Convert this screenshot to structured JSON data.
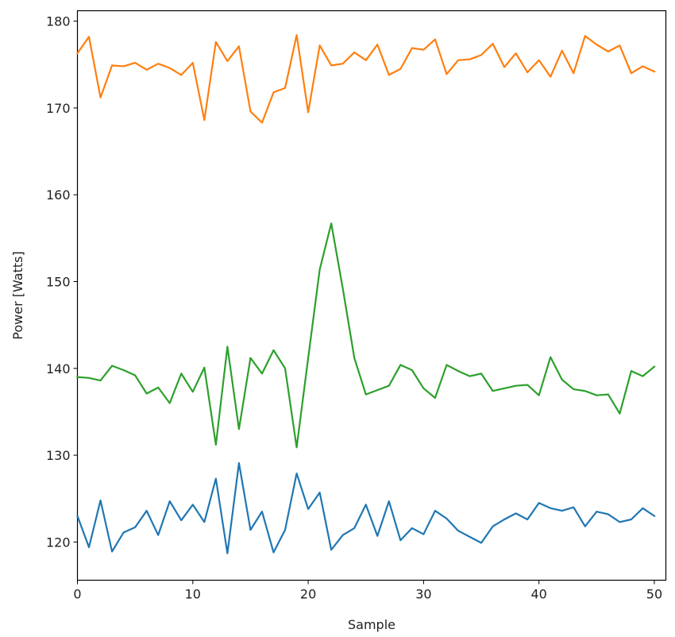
{
  "chart_data": {
    "type": "line",
    "title": "",
    "xlabel": "Sample",
    "ylabel": "Power [Watts]",
    "xlim": [
      0,
      51
    ],
    "ylim": [
      115.6,
      181.2
    ],
    "xticks": [
      0,
      10,
      20,
      30,
      40,
      50
    ],
    "yticks": [
      120,
      130,
      140,
      150,
      160,
      170,
      180
    ],
    "grid": false,
    "legend": "none",
    "x": [
      0,
      1,
      2,
      3,
      4,
      5,
      6,
      7,
      8,
      9,
      10,
      11,
      12,
      13,
      14,
      15,
      16,
      17,
      18,
      19,
      20,
      21,
      22,
      23,
      24,
      25,
      26,
      27,
      28,
      29,
      30,
      31,
      32,
      33,
      34,
      35,
      36,
      37,
      38,
      39,
      40,
      41,
      42,
      43,
      44,
      45,
      46,
      47,
      48,
      49,
      50
    ],
    "series": [
      {
        "color": "#1f77b4",
        "values": [
          123.0,
          119.4,
          124.8,
          118.9,
          121.1,
          121.7,
          123.6,
          120.8,
          124.7,
          122.5,
          124.3,
          122.3,
          127.3,
          118.7,
          129.1,
          121.4,
          123.5,
          118.8,
          121.4,
          127.9,
          123.8,
          125.7,
          119.1,
          120.8,
          121.6,
          124.3,
          120.7,
          124.7,
          120.2,
          121.6,
          120.9,
          123.6,
          122.7,
          121.3,
          120.6,
          119.9,
          121.8,
          122.6,
          123.3,
          122.6,
          124.5,
          123.9,
          123.6,
          124.0,
          121.8,
          123.5,
          123.2,
          122.3,
          122.6,
          123.9,
          123.0
        ]
      },
      {
        "color": "#ff7f0e",
        "values": [
          176.3,
          178.2,
          171.2,
          174.9,
          174.8,
          175.2,
          174.4,
          175.1,
          174.6,
          173.8,
          175.2,
          168.6,
          177.6,
          175.4,
          177.1,
          169.6,
          168.3,
          171.8,
          172.3,
          178.4,
          169.5,
          177.2,
          174.9,
          175.1,
          176.4,
          175.5,
          177.3,
          173.8,
          174.5,
          176.9,
          176.7,
          177.9,
          173.9,
          175.5,
          175.6,
          176.1,
          177.4,
          174.7,
          176.3,
          174.1,
          175.5,
          173.6,
          176.6,
          174.0,
          178.3,
          177.3,
          176.5,
          177.2,
          174.0,
          174.8,
          174.2
        ]
      },
      {
        "color": "#2ca02c",
        "values": [
          139.0,
          138.9,
          138.6,
          140.3,
          139.8,
          139.2,
          137.1,
          137.8,
          136.0,
          139.4,
          137.3,
          140.1,
          131.2,
          142.5,
          133.0,
          141.2,
          139.4,
          142.1,
          140.0,
          130.9,
          141.2,
          151.4,
          156.7,
          149.2,
          141.2,
          137.0,
          137.5,
          138.0,
          140.4,
          139.8,
          137.7,
          136.6,
          140.4,
          139.7,
          139.1,
          139.4,
          137.4,
          137.7,
          138.0,
          138.1,
          136.9,
          141.3,
          138.7,
          137.6,
          137.4,
          136.9,
          137.0,
          134.8,
          139.7,
          139.1,
          140.2
        ]
      }
    ]
  }
}
